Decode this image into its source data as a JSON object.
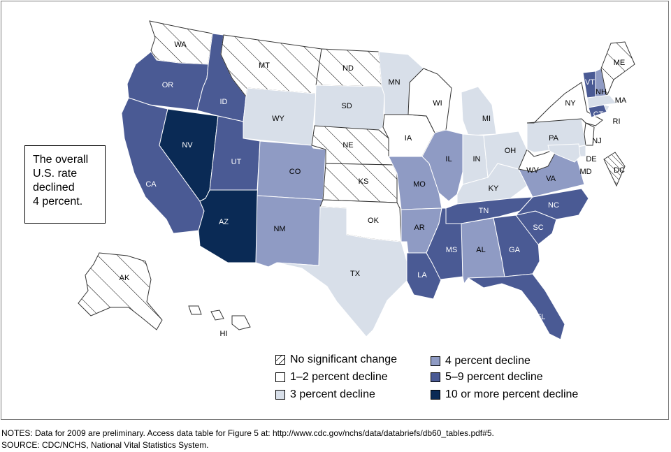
{
  "summary": {
    "lines": [
      "The overall",
      "U.S. rate",
      "declined",
      "4 percent."
    ]
  },
  "legend": [
    {
      "key": "nsc",
      "label": "No significant change",
      "color": "#ffffff",
      "pattern": "hatch"
    },
    {
      "key": "d1_2",
      "label": "1–2 percent decline",
      "color": "#ffffff",
      "pattern": "none"
    },
    {
      "key": "d3",
      "label": "3 percent decline",
      "color": "#d8dfe9",
      "pattern": "none"
    },
    {
      "key": "d4",
      "label": "4 percent decline",
      "color": "#8f9bc4",
      "pattern": "none"
    },
    {
      "key": "d5_9",
      "label": "5–9 percent decline",
      "color": "#4a5a94",
      "pattern": "none"
    },
    {
      "key": "d10",
      "label": "10 or more percent decline",
      "color": "#0a2a55",
      "pattern": "none"
    }
  ],
  "states": {
    "WA": "nsc",
    "OR": "d5_9",
    "CA": "d5_9",
    "NV": "d10",
    "ID": "d5_9",
    "MT": "nsc",
    "WY": "d3",
    "UT": "d5_9",
    "AZ": "d10",
    "CO": "d4",
    "NM": "d4",
    "ND": "nsc",
    "SD": "d3",
    "NE": "nsc",
    "KS": "nsc",
    "OK": "d1_2",
    "TX": "d3",
    "MN": "d3",
    "IA": "d1_2",
    "MO": "d4",
    "AR": "d4",
    "LA": "d5_9",
    "WI": "d1_2",
    "IL": "d4",
    "MS": "d5_9",
    "MI": "d3",
    "IN": "d3",
    "KY": "d3",
    "TN": "d5_9",
    "AL": "d4",
    "OH": "d3",
    "GA": "d5_9",
    "FL": "d5_9",
    "SC": "d5_9",
    "NC": "d5_9",
    "VA": "d4",
    "WV": "d1_2",
    "PA": "d3",
    "NY": "d1_2",
    "VT": "d5_9",
    "NH": "d4",
    "ME": "nsc",
    "MA": "d3",
    "RI": "d3",
    "CT": "d5_9",
    "NJ": "d1_2",
    "DE": "d3",
    "MD": "d3",
    "DC": "nsc",
    "AK": "nsc",
    "HI": "d1_2"
  },
  "notes": [
    "NOTES: Data for 2009 are preliminary. Access data table for Figure 5 at: http://www.cdc.gov/nchs/data/databriefs/db60_tables.pdf#5.",
    "SOURCE: CDC/NCHS, National Vital Statistics System."
  ]
}
